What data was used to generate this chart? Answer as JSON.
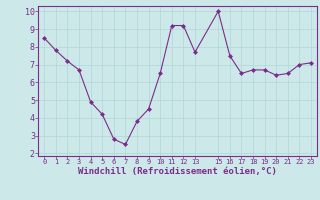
{
  "x": [
    0,
    1,
    2,
    3,
    4,
    5,
    6,
    7,
    8,
    9,
    10,
    11,
    12,
    13,
    15,
    16,
    17,
    18,
    19,
    20,
    21,
    22,
    23
  ],
  "y": [
    8.5,
    7.8,
    7.2,
    6.7,
    4.9,
    4.2,
    2.8,
    2.5,
    3.8,
    4.5,
    6.5,
    9.2,
    9.2,
    7.7,
    10.0,
    7.5,
    6.5,
    6.7,
    6.7,
    6.4,
    6.5,
    7.0,
    7.1
  ],
  "line_color": "#7b2d8b",
  "marker": "D",
  "marker_size": 2,
  "bg_color": "#cce8e8",
  "grid_color": "#b0d8d8",
  "xlabel": "Windchill (Refroidissement éolien,°C)",
  "xlabel_color": "#7b2d8b",
  "tick_color": "#7b2d8b",
  "spine_color": "#7b2d8b",
  "ylim": [
    2,
    10
  ],
  "xlim": [
    -0.5,
    23.5
  ],
  "yticks": [
    2,
    3,
    4,
    5,
    6,
    7,
    8,
    9,
    10
  ],
  "xticks": [
    0,
    1,
    2,
    3,
    4,
    5,
    6,
    7,
    8,
    9,
    10,
    11,
    12,
    13,
    15,
    16,
    17,
    18,
    19,
    20,
    21,
    22,
    23
  ],
  "xlabel_fontsize": 6.5,
  "tick_fontsize_x": 5.0,
  "tick_fontsize_y": 6.0
}
